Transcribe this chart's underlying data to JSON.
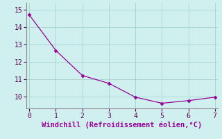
{
  "x": [
    0,
    1,
    2,
    3,
    4,
    5,
    6,
    7
  ],
  "y": [
    14.7,
    12.65,
    11.2,
    10.75,
    9.95,
    9.6,
    9.75,
    9.95
  ],
  "line_color": "#990099",
  "marker": "D",
  "marker_size": 2.5,
  "line_width": 0.9,
  "xlabel": "Windchill (Refroidissement éolien,°C)",
  "xlabel_fontsize": 7.5,
  "xlim": [
    -0.1,
    7.1
  ],
  "ylim": [
    9.3,
    15.4
  ],
  "yticks": [
    10,
    11,
    12,
    13,
    14,
    15
  ],
  "xticks": [
    0,
    1,
    2,
    3,
    4,
    5,
    6,
    7
  ],
  "background_color": "#cff0ee",
  "grid_color": "#aad8d5",
  "tick_fontsize": 7,
  "spine_color": "#888888"
}
